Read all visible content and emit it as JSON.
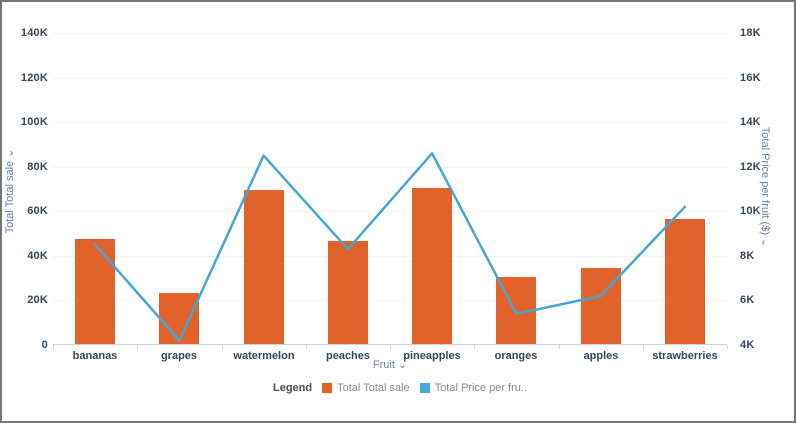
{
  "icons": {
    "chevron_down": "⌄"
  },
  "chart_data": {
    "type": "combo-bar-line",
    "categories": [
      "bananas",
      "grapes",
      "watermelon",
      "peaches",
      "pineapples",
      "oranges",
      "apples",
      "strawberries"
    ],
    "series": [
      {
        "name": "Total Total sale",
        "type": "bar",
        "axis": "left",
        "color": "#e2622b",
        "values": [
          47000,
          23000,
          69000,
          46000,
          70000,
          30000,
          34000,
          56000
        ]
      },
      {
        "name": "Total Price per fruit ($)",
        "type": "line",
        "axis": "right",
        "color": "#45a6d6",
        "values": [
          8500,
          4200,
          12500,
          8300,
          12600,
          5400,
          6200,
          10200
        ]
      }
    ],
    "left_axis": {
      "title": "Total Total sale",
      "min": 0,
      "max": 140000,
      "ticks": [
        "0",
        "20K",
        "40K",
        "60K",
        "80K",
        "100K",
        "120K",
        "140K"
      ]
    },
    "right_axis": {
      "title": "Total Price per fruit ($)",
      "min": 4000,
      "max": 18000,
      "ticks": [
        "4K",
        "6K",
        "8K",
        "10K",
        "12K",
        "14K",
        "16K",
        "18K"
      ]
    },
    "x_axis": {
      "title": "Fruit"
    },
    "legend": {
      "label": "Legend",
      "items": [
        {
          "label": "Total Total sale",
          "color": "#e2622b"
        },
        {
          "label": "Total Price per fru..",
          "color": "#4aa9da"
        }
      ]
    },
    "grid": true,
    "legend_position": "bottom"
  }
}
